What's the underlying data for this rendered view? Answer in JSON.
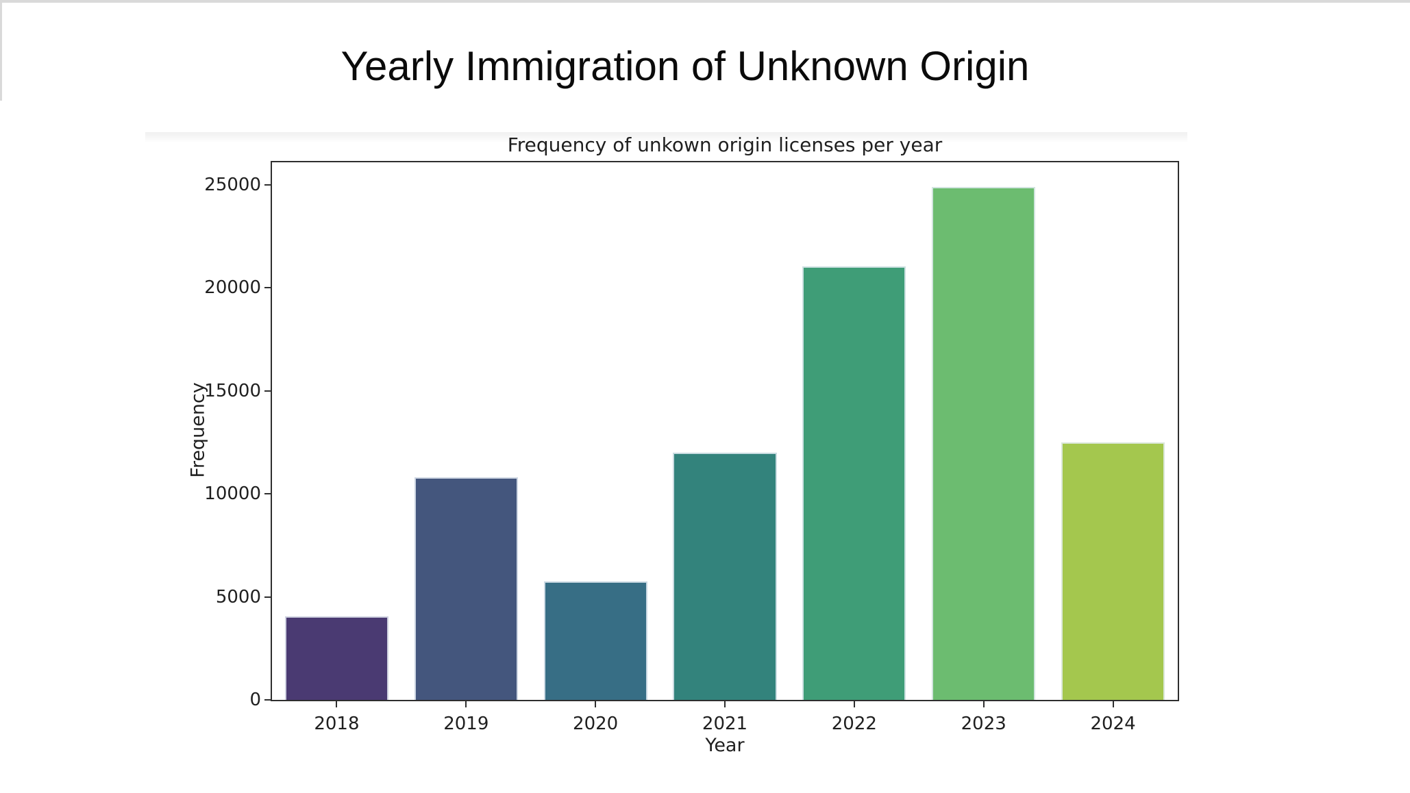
{
  "page": {
    "main_title": "Yearly Immigration of Unknown Origin"
  },
  "chart_data": {
    "type": "bar",
    "title": "Frequency of unkown origin licenses per year",
    "xlabel": "Year",
    "ylabel": "Frequency",
    "categories": [
      "2018",
      "2019",
      "2020",
      "2021",
      "2022",
      "2023",
      "2024"
    ],
    "values": [
      4050,
      10800,
      5750,
      12000,
      21050,
      24900,
      12500
    ],
    "colors": [
      "#4a3a72",
      "#44567d",
      "#376e85",
      "#33837c",
      "#3f9d77",
      "#6cbc70",
      "#a4c74e"
    ],
    "yticks": [
      0,
      5000,
      10000,
      15000,
      20000,
      25000
    ],
    "ylim": [
      0,
      26100
    ],
    "bar_width_fraction": 0.8,
    "grid": false,
    "legend": "none",
    "text_color": "#1f1f1f",
    "spine_color": "#2e2e2e"
  }
}
